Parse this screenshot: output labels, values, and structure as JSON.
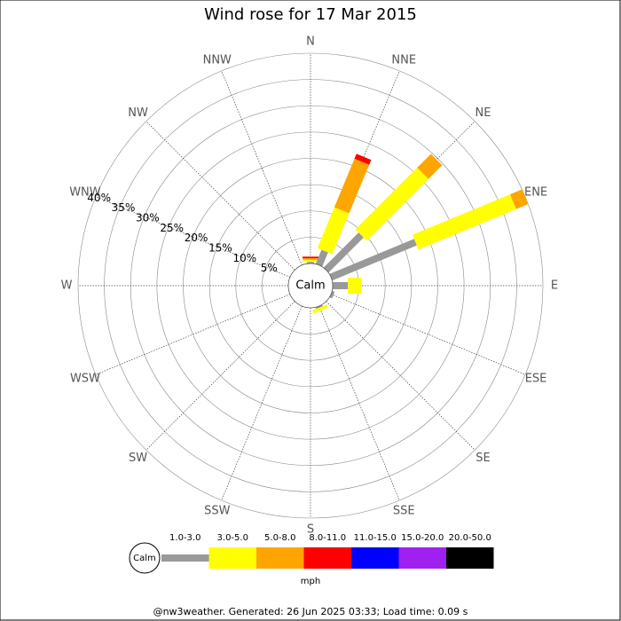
{
  "chart_data": {
    "type": "windrose",
    "title": "Wind rose for 17 Mar 2015",
    "directions": [
      "N",
      "NNE",
      "NE",
      "ENE",
      "E",
      "ESE",
      "SE",
      "SSE",
      "S",
      "SSW",
      "SW",
      "WSW",
      "W",
      "WNW",
      "NW",
      "NNW"
    ],
    "calm_label": "Calm",
    "unit": "mph",
    "rlim": [
      0,
      40
    ],
    "rticks": [
      {
        "value": 5,
        "label": "5%"
      },
      {
        "value": 10,
        "label": "10%"
      },
      {
        "value": 15,
        "label": "15%"
      },
      {
        "value": 20,
        "label": "20%"
      },
      {
        "value": 25,
        "label": "25%"
      },
      {
        "value": 30,
        "label": "30%"
      },
      {
        "value": 35,
        "label": "35%"
      },
      {
        "value": 40,
        "label": "40%"
      }
    ],
    "series": [
      {
        "name": "1.0-3.0",
        "color": "#999999",
        "values": [
          0.3,
          2.9,
          9.4,
          17.4,
          2.9,
          0.5,
          0,
          0.3,
          0,
          0,
          0,
          0,
          0,
          0,
          0,
          0
        ]
      },
      {
        "name": "3.0-5.0",
        "color": "#ffff00",
        "values": [
          0.4,
          8.4,
          16.6,
          20.1,
          2.5,
          0,
          0,
          0.6,
          0,
          0,
          0,
          0,
          0,
          0,
          0,
          0
        ]
      },
      {
        "name": "5.0-8.0",
        "color": "#ffa500",
        "values": [
          0.3,
          10,
          3.7,
          2.5,
          0,
          0,
          0,
          0,
          0,
          0,
          0,
          0,
          0,
          0,
          0,
          0
        ]
      },
      {
        "name": "8.0-11.0",
        "color": "#ff0000",
        "values": [
          0.3,
          1,
          0,
          0,
          0,
          0,
          0,
          0,
          0,
          0,
          0,
          0,
          0,
          0,
          0,
          0
        ]
      },
      {
        "name": "11.0-15.0",
        "color": "#0000ff",
        "values": [
          0,
          0,
          0,
          0,
          0,
          0,
          0,
          0,
          0,
          0,
          0,
          0,
          0,
          0,
          0,
          0
        ]
      },
      {
        "name": "15.0-20.0",
        "color": "#a020f0",
        "values": [
          0,
          0,
          0,
          0,
          0,
          0,
          0,
          0,
          0,
          0,
          0,
          0,
          0,
          0,
          0,
          0
        ]
      },
      {
        "name": "20.0-50.0",
        "color": "#000000",
        "values": [
          0,
          0,
          0,
          0,
          0,
          0,
          0,
          0,
          0,
          0,
          0,
          0,
          0,
          0,
          0,
          0
        ]
      }
    ],
    "footer": "@nw3weather. Generated: 26 Jun 2025 03:33; Load time: 0.09 s"
  }
}
